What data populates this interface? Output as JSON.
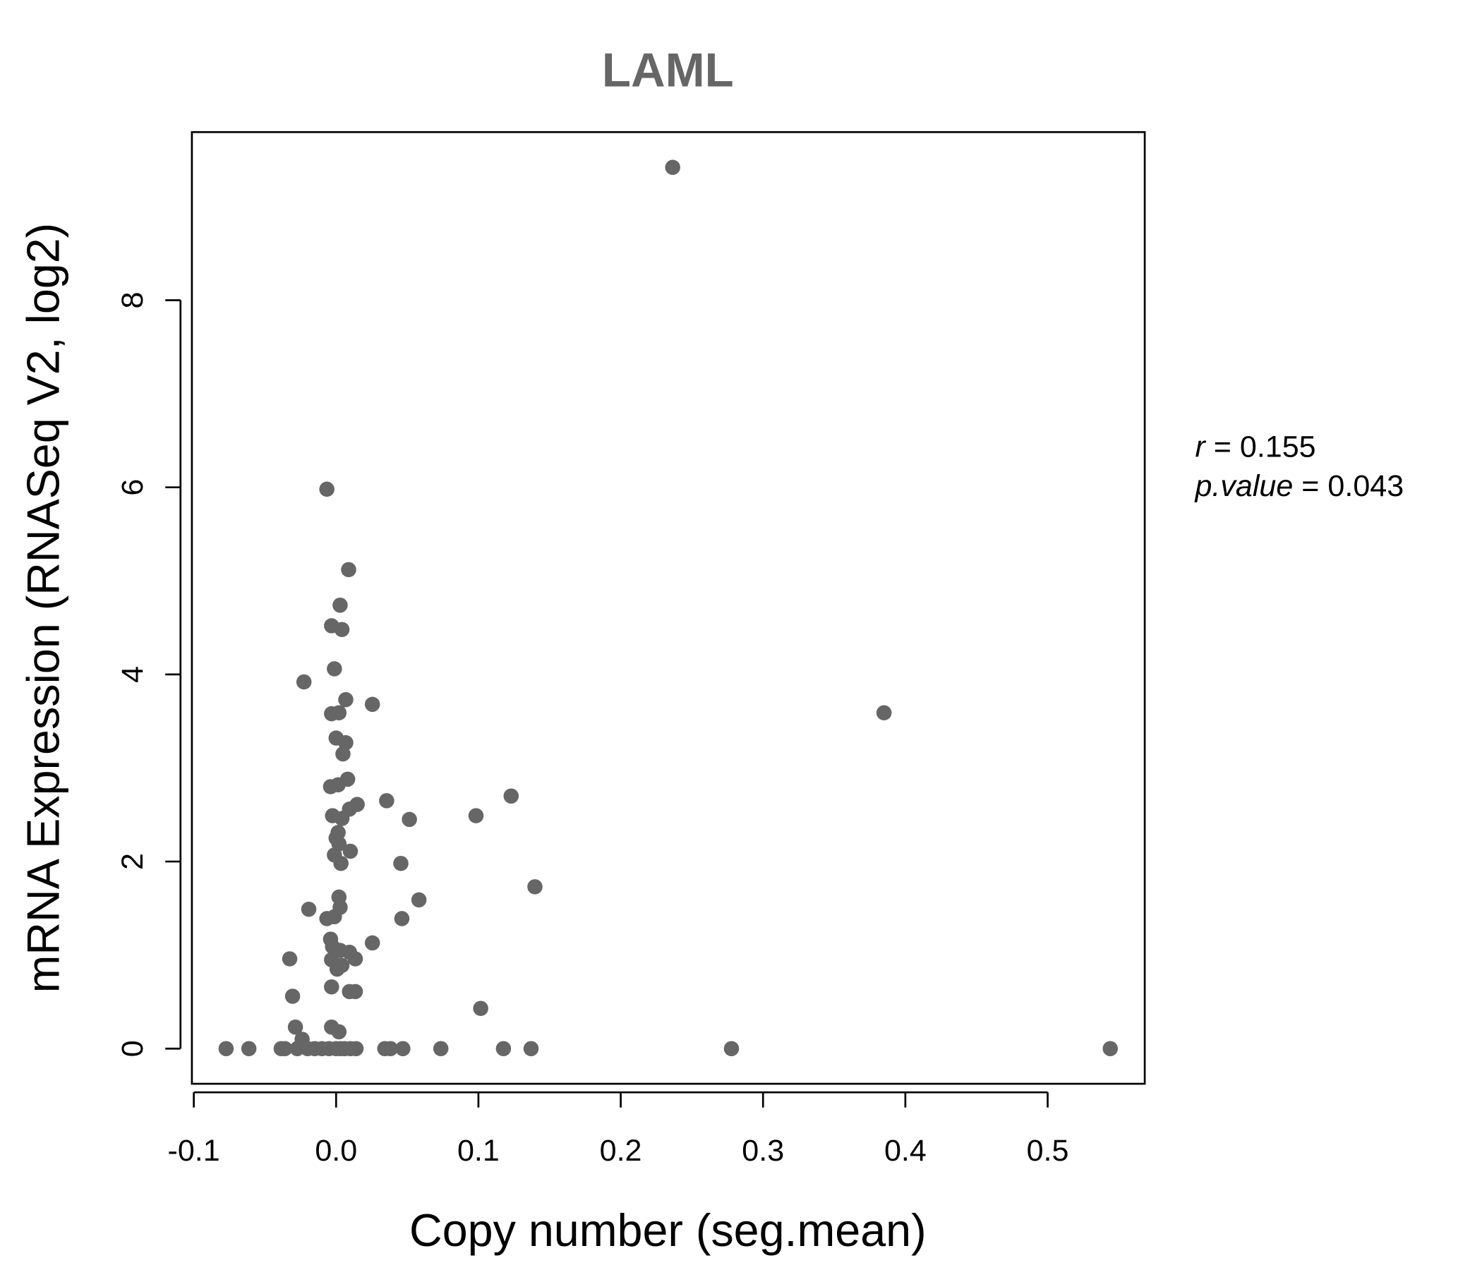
{
  "chart_data": {
    "type": "scatter",
    "title": "LAML",
    "xlabel": "Copy number (seg.mean)",
    "ylabel": "mRNA Expression (RNASeq V2, log2)",
    "xlim": [
      -0.1,
      0.57
    ],
    "ylim": [
      -0.35,
      9.8
    ],
    "x_ticks": [
      -0.1,
      0.0,
      0.1,
      0.2,
      0.3,
      0.4,
      0.5
    ],
    "x_tick_labels": [
      "-0.1",
      "0.0",
      "0.1",
      "0.2",
      "0.3",
      "0.4",
      "0.5"
    ],
    "y_ticks": [
      0,
      2,
      4,
      6,
      8
    ],
    "y_tick_labels": [
      "0",
      "2",
      "4",
      "6",
      "8"
    ],
    "grid": false,
    "point_color": "#666666",
    "title_color": "#666666",
    "annotation": {
      "r_label": "r",
      "r_value": "0.155",
      "p_label": "p.value",
      "p_value": "0.043",
      "placement": "right"
    },
    "points": [
      [
        0.2365,
        9.42
      ],
      [
        -0.0065,
        5.98
      ],
      [
        0.0088,
        5.12
      ],
      [
        0.0028,
        4.74
      ],
      [
        -0.0032,
        4.52
      ],
      [
        0.0041,
        4.48
      ],
      [
        -0.0226,
        3.92
      ],
      [
        -0.0012,
        4.06
      ],
      [
        0.0068,
        3.73
      ],
      [
        0.0255,
        3.68
      ],
      [
        -0.0032,
        3.58
      ],
      [
        0.002,
        3.59
      ],
      [
        0.385,
        3.59
      ],
      [
        0.0,
        3.32
      ],
      [
        0.0068,
        3.27
      ],
      [
        0.0048,
        3.15
      ],
      [
        0.0081,
        2.88
      ],
      [
        -0.0039,
        2.8
      ],
      [
        0.0014,
        2.82
      ],
      [
        0.0355,
        2.65
      ],
      [
        0.0148,
        2.61
      ],
      [
        0.0094,
        2.56
      ],
      [
        0.123,
        2.7
      ],
      [
        0.0983,
        2.49
      ],
      [
        0.0515,
        2.45
      ],
      [
        -0.0025,
        2.49
      ],
      [
        0.0041,
        2.46
      ],
      [
        0.0014,
        2.31
      ],
      [
        0.0,
        2.25
      ],
      [
        0.002,
        2.19
      ],
      [
        0.01,
        2.11
      ],
      [
        -0.0012,
        2.07
      ],
      [
        0.0034,
        1.98
      ],
      [
        0.0455,
        1.98
      ],
      [
        0.1397,
        1.73
      ],
      [
        0.002,
        1.62
      ],
      [
        0.0582,
        1.59
      ],
      [
        0.0028,
        1.51
      ],
      [
        -0.0192,
        1.49
      ],
      [
        -0.0012,
        1.41
      ],
      [
        -0.0065,
        1.39
      ],
      [
        0.0462,
        1.39
      ],
      [
        0.0255,
        1.13
      ],
      [
        -0.0039,
        1.17
      ],
      [
        -0.0025,
        1.09
      ],
      [
        0.0028,
        1.05
      ],
      [
        0.0094,
        1.03
      ],
      [
        0.0135,
        0.96
      ],
      [
        -0.0326,
        0.96
      ],
      [
        -0.0032,
        0.95
      ],
      [
        0.0041,
        0.89
      ],
      [
        0.0007,
        0.85
      ],
      [
        -0.0032,
        0.66
      ],
      [
        0.0094,
        0.61
      ],
      [
        0.0135,
        0.61
      ],
      [
        -0.0306,
        0.56
      ],
      [
        0.1016,
        0.43
      ],
      [
        -0.0286,
        0.23
      ],
      [
        -0.0032,
        0.23
      ],
      [
        0.002,
        0.18
      ],
      [
        -0.0239,
        0.1
      ],
      [
        -0.0773,
        0
      ],
      [
        -0.0613,
        0
      ],
      [
        -0.0386,
        0
      ],
      [
        -0.036,
        0
      ],
      [
        -0.0273,
        0
      ],
      [
        -0.02,
        0
      ],
      [
        -0.015,
        0
      ],
      [
        -0.01,
        0
      ],
      [
        -0.005,
        0
      ],
      [
        0.0,
        0
      ],
      [
        0.003,
        0
      ],
      [
        0.006,
        0
      ],
      [
        0.01,
        0
      ],
      [
        0.014,
        0
      ],
      [
        0.0342,
        0
      ],
      [
        0.0382,
        0
      ],
      [
        0.0469,
        0
      ],
      [
        0.0736,
        0
      ],
      [
        0.1176,
        0
      ],
      [
        0.137,
        0
      ],
      [
        0.2778,
        0
      ],
      [
        0.544,
        0
      ]
    ]
  }
}
